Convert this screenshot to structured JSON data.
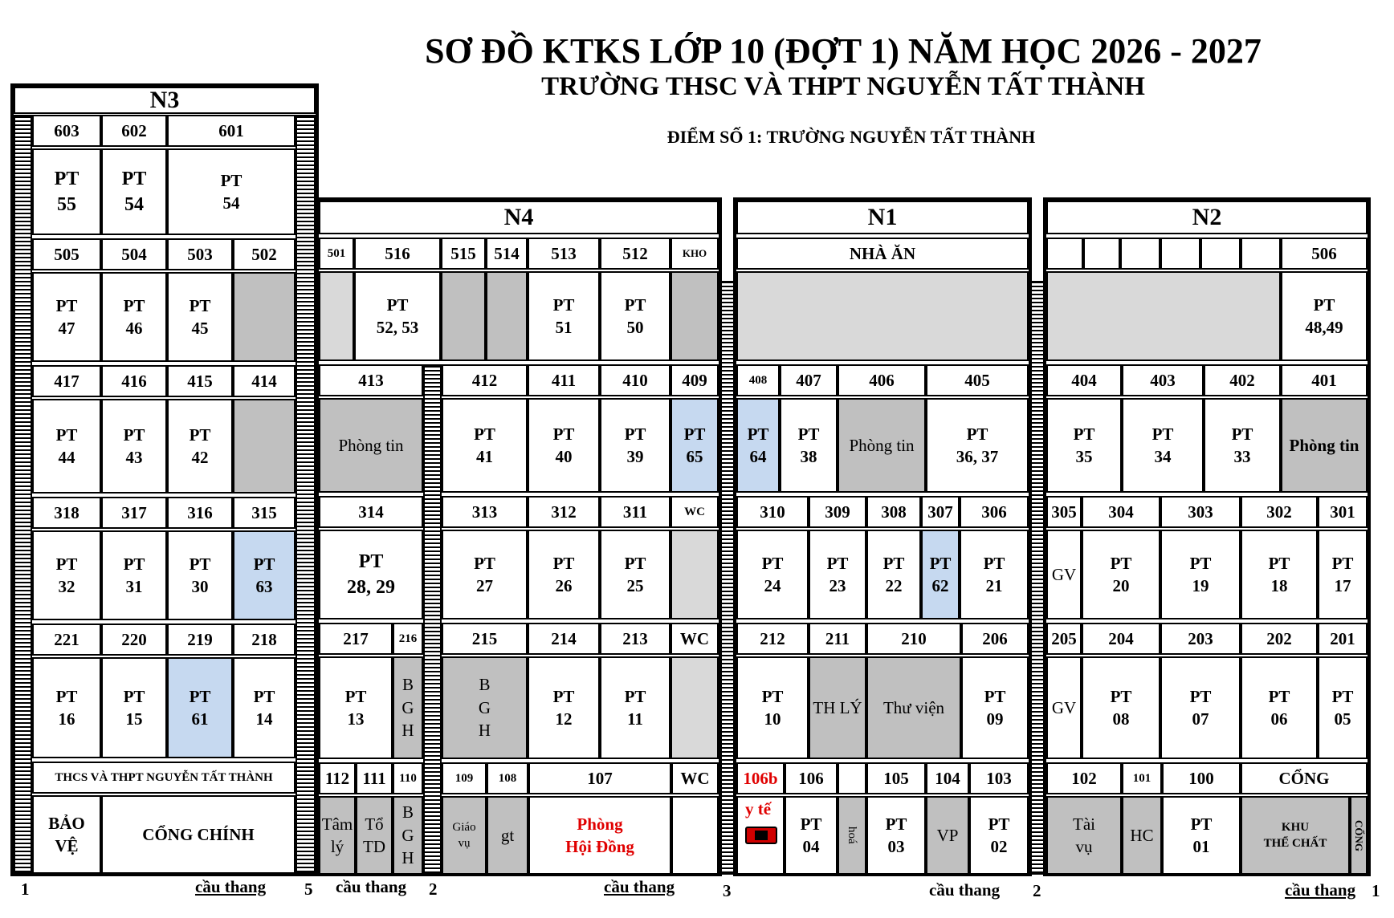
{
  "title": "SƠ ĐỒ KTKS LỚP 10 (ĐỢT 1) NĂM HỌC 2026 - 2027",
  "subtitle": "TRƯỜNG THSC VÀ THPT NGUYỄN TẤT THÀNH",
  "location": "ĐIỂM SỐ 1: TRƯỜNG NGUYỄN TẤT THÀNH",
  "buildings": {
    "n3": "N3",
    "n4": "N4",
    "n1": "N1",
    "n2": "N2"
  },
  "rooms": {
    "r603": "603",
    "r602": "602",
    "r601": "601",
    "r505": "505",
    "r504": "504",
    "r503": "503",
    "r502": "502",
    "r501": "501",
    "r516": "516",
    "r515": "515",
    "r514": "514",
    "r513": "513",
    "r512": "512",
    "kho": "KHO",
    "nha_an": "NHÀ ĂN",
    "r506": "506",
    "r417": "417",
    "r416": "416",
    "r415": "415",
    "r414": "414",
    "r413": "413",
    "r412": "412",
    "r411": "411",
    "r410": "410",
    "r409": "409",
    "r408": "408",
    "r407": "407",
    "r406": "406",
    "r405": "405",
    "r404": "404",
    "r403": "403",
    "r402": "402",
    "r401": "401",
    "r318": "318",
    "r317": "317",
    "r316": "316",
    "r315": "315",
    "r314": "314",
    "r313": "313",
    "r312": "312",
    "r311": "311",
    "wc3": "WC",
    "r310": "310",
    "r309": "309",
    "r308": "308",
    "r307": "307",
    "r306": "306",
    "r305": "305",
    "r304": "304",
    "r303": "303",
    "r302": "302",
    "r301": "301",
    "r221": "221",
    "r220": "220",
    "r219": "219",
    "r218": "218",
    "r217": "217",
    "r216": "216",
    "r215": "215",
    "r214": "214",
    "r213": "213",
    "wc2": "WC",
    "r212": "212",
    "r211": "211",
    "r210": "210",
    "r206": "206",
    "r205": "205",
    "r204": "204",
    "r203": "203",
    "r202": "202",
    "r201": "201",
    "school_name": "THCS VÀ THPT NGUYỄN TẤT THÀNH",
    "r112": "112",
    "r111": "111",
    "r110": "110",
    "r109": "109",
    "r108": "108",
    "r107": "107",
    "wc1": "WC",
    "r106b": "106b",
    "r106": "106",
    "r105": "105",
    "r104": "104",
    "r103": "103",
    "r102": "102",
    "r101": "101",
    "r100": "100",
    "cong": "CỔNG"
  },
  "cells": {
    "pt55": "PT\n55",
    "pt54a": "PT\n54",
    "pt54b": "PT\n54",
    "pt47": "PT\n47",
    "pt46": "PT\n46",
    "pt45": "PT\n45",
    "pt5253": "PT\n52, 53",
    "pt51": "PT\n51",
    "pt50": "PT\n50",
    "pt4849": "PT\n48,49",
    "pt44": "PT\n44",
    "pt43": "PT\n43",
    "pt42": "PT\n42",
    "phong_tin": "Phòng tin",
    "pt41": "PT\n41",
    "pt40": "PT\n40",
    "pt39": "PT\n39",
    "pt65": "PT\n65",
    "pt64": "PT\n64",
    "pt38": "PT\n38",
    "pt3637": "PT\n36, 37",
    "pt35": "PT\n35",
    "pt34": "PT\n34",
    "pt33": "PT\n33",
    "pt32": "PT\n32",
    "pt31": "PT\n31",
    "pt30": "PT\n30",
    "pt63": "PT\n63",
    "pt2829": "PT\n28, 29",
    "pt27": "PT\n27",
    "pt26": "PT\n26",
    "pt25": "PT\n25",
    "pt24": "PT\n24",
    "pt23": "PT\n23",
    "pt22": "PT\n22",
    "pt62": "PT\n62",
    "pt21": "PT\n21",
    "gv": "GV",
    "pt20": "PT\n20",
    "pt19": "PT\n19",
    "pt18": "PT\n18",
    "pt17": "PT\n17",
    "pt16": "PT\n16",
    "pt15": "PT\n15",
    "pt61": "PT\n61",
    "pt14": "PT\n14",
    "pt13": "PT\n13",
    "bgh": "B\nG\nH",
    "pt12": "PT\n12",
    "pt11": "PT\n11",
    "pt10": "PT\n10",
    "th_ly": "TH LÝ",
    "thu_vien": "Thư viện",
    "pt09": "PT\n09",
    "pt08": "PT\n08",
    "pt07": "PT\n07",
    "pt06": "PT\n06",
    "pt05": "PT\n05",
    "bao_ve": "BẢO\nVỆ",
    "cong_chinh": "CỔNG CHÍNH",
    "tam_ly": "Tâm\nlý",
    "to_td": "Tổ\nTD",
    "giao_vu": "Giáo\nvụ",
    "gt": "gt",
    "phong_hoi_dong": "Phòng\nHội Đồng",
    "y_te": "y tế",
    "pt04": "PT\n04",
    "hoa": "hoá",
    "pt03": "PT\n03",
    "vp": "VP",
    "pt02": "PT\n02",
    "tai_vu": "Tài\nvụ",
    "hc": "HC",
    "pt01": "PT\n01",
    "khu_the_chat": "KHU\nTHỂ CHẤT",
    "cong_side": "CỔNG"
  },
  "stairs": {
    "label": "cầu thang",
    "n1": "1",
    "n5": "5",
    "n2a": "2",
    "n3": "3",
    "n2b": "2",
    "n1b": "1"
  },
  "colors": {
    "gray": "#c0c0c0",
    "light_gray": "#d9d9d9",
    "blue": "#c6d9f0",
    "red": "#e00000"
  }
}
